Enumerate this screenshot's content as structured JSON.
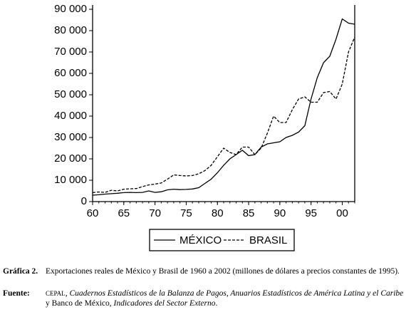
{
  "chart_data": {
    "type": "line",
    "x": [
      1960,
      1961,
      1962,
      1963,
      1964,
      1965,
      1966,
      1967,
      1968,
      1969,
      1970,
      1971,
      1972,
      1973,
      1974,
      1975,
      1976,
      1977,
      1978,
      1979,
      1980,
      1981,
      1982,
      1983,
      1984,
      1985,
      1986,
      1987,
      1988,
      1989,
      1990,
      1991,
      1992,
      1993,
      1994,
      1995,
      1996,
      1997,
      1998,
      1999,
      2000,
      2001,
      2002
    ],
    "series": [
      {
        "name": "MÉXICO",
        "color": "#000000",
        "dash": false,
        "values": [
          3000,
          3200,
          3500,
          3700,
          3900,
          4200,
          4300,
          4200,
          4300,
          5000,
          4300,
          4600,
          5500,
          5800,
          5600,
          5700,
          5900,
          6500,
          8500,
          10500,
          13500,
          17000,
          20000,
          22000,
          24000,
          21500,
          22000,
          25500,
          27000,
          27500,
          28000,
          30000,
          31000,
          32500,
          35500,
          48000,
          58000,
          65000,
          68000,
          76000,
          85500,
          83500,
          83000
        ]
      },
      {
        "name": "BRASIL",
        "color": "#000000",
        "dash": true,
        "values": [
          4200,
          4500,
          4300,
          5300,
          5000,
          5800,
          6000,
          6100,
          7000,
          7800,
          8200,
          8700,
          10500,
          12500,
          12200,
          12000,
          12200,
          13000,
          14500,
          17000,
          21000,
          25000,
          23000,
          22000,
          25500,
          25500,
          22000,
          25000,
          32000,
          40000,
          37000,
          37000,
          43000,
          48000,
          49000,
          46500,
          46500,
          51000,
          51500,
          48000,
          55000,
          70000,
          77000
        ]
      }
    ],
    "xlim": [
      1960,
      2002
    ],
    "xticks": [
      {
        "value": 1960,
        "label": "60"
      },
      {
        "value": 1965,
        "label": "65"
      },
      {
        "value": 1970,
        "label": "70"
      },
      {
        "value": 1975,
        "label": "75"
      },
      {
        "value": 1980,
        "label": "80"
      },
      {
        "value": 1985,
        "label": "85"
      },
      {
        "value": 1990,
        "label": "90"
      },
      {
        "value": 1995,
        "label": "95"
      },
      {
        "value": 2000,
        "label": "00"
      }
    ],
    "ylim": [
      0,
      90000
    ],
    "yticks": [
      0,
      {
        "value": 10000,
        "label": "10 000"
      },
      {
        "value": 20000,
        "label": "20 000"
      },
      {
        "value": 30000,
        "label": "30 000"
      },
      {
        "value": 40000,
        "label": "40 000"
      },
      {
        "value": 50000,
        "label": "50 000"
      },
      {
        "value": 60000,
        "label": "60 000"
      },
      {
        "value": 70000,
        "label": "70 000"
      },
      {
        "value": 80000,
        "label": "80 000"
      },
      {
        "value": 90000,
        "label": "90 000"
      }
    ]
  },
  "caption": {
    "label": "Gráfica 2.",
    "text": "Exportaciones reales de México y Brasil de 1960 a 2002 (millones de dólares a precios constantes de 1995).",
    "source_label": "Fuente:",
    "source_parts": [
      "CEPAL",
      ", ",
      "Cuadernos Estadísticos de la Balanza de Pagos, Anuarios Estadísticos de América Latina y el Caribe",
      " y Banco de México, ",
      "Indicadores del Sector Externo",
      "."
    ]
  }
}
